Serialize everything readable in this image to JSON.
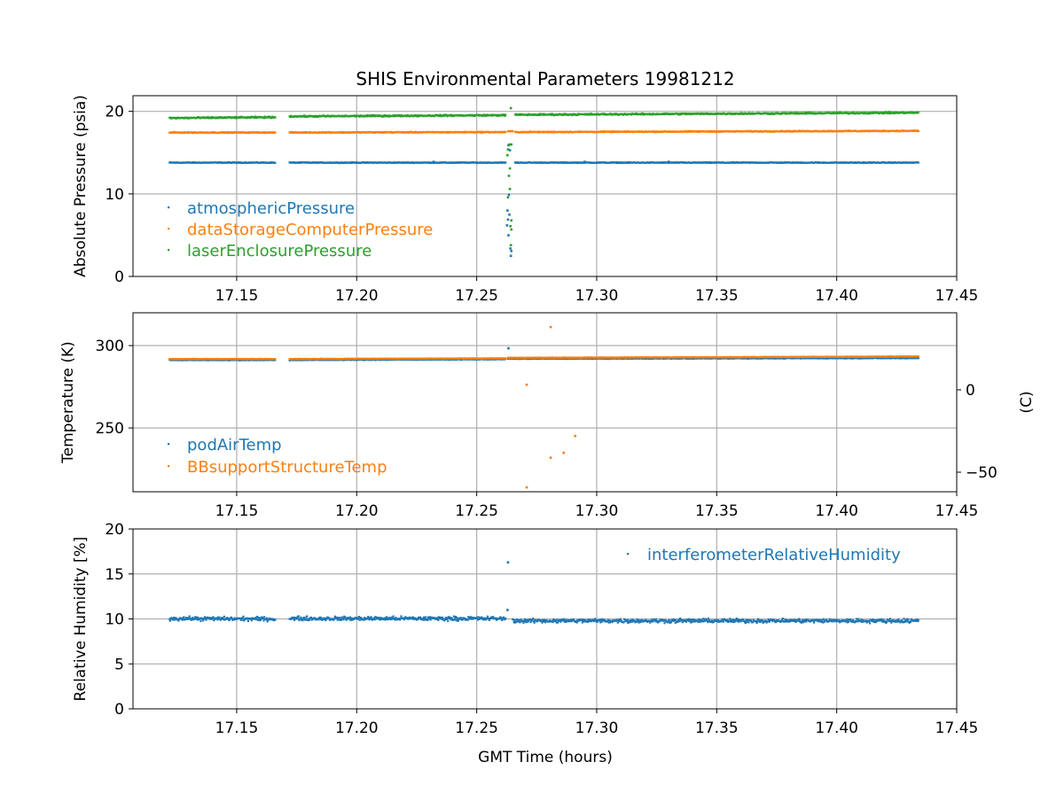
{
  "title": "SHIS Environmental Parameters 19981212",
  "xlabel": "GMT Time (hours)",
  "chart_data": [
    {
      "type": "scatter",
      "ylabel": "Absolute Pressure (psia)",
      "xlim": [
        17.1068,
        17.45
      ],
      "ylim": [
        0,
        21.9
      ],
      "xticks": [
        17.15,
        17.2,
        17.25,
        17.3,
        17.35,
        17.4,
        17.45
      ],
      "xtick_labels": [
        "17.15",
        "17.20",
        "17.25",
        "17.30",
        "17.35",
        "17.40",
        "17.45"
      ],
      "yticks": [
        0,
        10,
        20
      ],
      "ytick_labels": [
        "0",
        "10",
        "20"
      ],
      "grid": true,
      "legend": "center-left",
      "series": [
        {
          "name": "atmosphericPressure",
          "color": "#1f77b4",
          "segments": [
            [
              17.122,
              17.166,
              13.8,
              13.8,
              0.03
            ],
            [
              17.172,
              17.262,
              13.8,
              13.8,
              0.03
            ],
            [
              17.266,
              17.434,
              13.8,
              13.8,
              0.03
            ]
          ],
          "points": [
            [
              17.2632,
              15.9
            ],
            [
              17.2638,
              15.3
            ],
            [
              17.2634,
              9.9
            ],
            [
              17.2628,
              8.0
            ],
            [
              17.2636,
              7.5
            ],
            [
              17.263,
              6.9
            ],
            [
              17.2626,
              6.2
            ],
            [
              17.2632,
              5.0
            ],
            [
              17.264,
              3.4
            ],
            [
              17.2644,
              3.1
            ],
            [
              17.2642,
              2.5
            ],
            [
              17.232,
              13.9
            ],
            [
              17.295,
              13.9
            ],
            [
              17.33,
              13.9
            ]
          ]
        },
        {
          "name": "dataStorageComputerPressure",
          "color": "#ff7f0e",
          "segments": [
            [
              17.122,
              17.166,
              17.45,
              17.45,
              0.04
            ],
            [
              17.172,
              17.262,
              17.45,
              17.5,
              0.04
            ],
            [
              17.263,
              17.265,
              17.6,
              17.6,
              0.02
            ],
            [
              17.266,
              17.434,
              17.5,
              17.65,
              0.04
            ]
          ],
          "points": []
        },
        {
          "name": "laserEnclosurePressure",
          "color": "#2ca02c",
          "segments": [
            [
              17.122,
              17.166,
              19.2,
              19.3,
              0.06
            ],
            [
              17.172,
              17.262,
              19.4,
              19.55,
              0.06
            ],
            [
              17.266,
              17.434,
              19.6,
              19.85,
              0.06
            ]
          ],
          "points": [
            [
              17.2642,
              20.4
            ],
            [
              17.2636,
              16.0
            ],
            [
              17.2644,
              16.0
            ],
            [
              17.263,
              15.4
            ],
            [
              17.2638,
              13.1
            ],
            [
              17.2634,
              12.2
            ],
            [
              17.2638,
              10.6
            ],
            [
              17.263,
              9.6
            ],
            [
              17.2644,
              6.8
            ],
            [
              17.264,
              6.1
            ],
            [
              17.2644,
              5.7
            ],
            [
              17.2642,
              3.8
            ],
            [
              17.2628,
              14.7
            ]
          ]
        }
      ]
    },
    {
      "type": "scatter",
      "ylabel": "Temperature (K)",
      "ylabel_right": "(C)",
      "xlim": [
        17.1068,
        17.45
      ],
      "ylim": [
        211.3,
        319.9
      ],
      "xticks": [
        17.15,
        17.2,
        17.25,
        17.3,
        17.35,
        17.4,
        17.45
      ],
      "xtick_labels": [
        "17.15",
        "17.20",
        "17.25",
        "17.30",
        "17.35",
        "17.40",
        "17.45"
      ],
      "yticks": [
        250,
        300
      ],
      "ytick_labels": [
        "250",
        "300"
      ],
      "yticks_right_C": [
        0,
        -50
      ],
      "ytick_labels_right": [
        "0",
        "−50"
      ],
      "grid": true,
      "legend": "lower-left",
      "series": [
        {
          "name": "podAirTemp",
          "color": "#1f77b4",
          "segments": [
            [
              17.122,
              17.166,
              291.3,
              291.3,
              0.15
            ],
            [
              17.172,
              17.262,
              291.3,
              291.8,
              0.15
            ],
            [
              17.263,
              17.434,
              292.1,
              292.5,
              0.15
            ]
          ],
          "points": [
            [
              17.2632,
              298.4
            ]
          ]
        },
        {
          "name": "BBsupportStructureTemp",
          "color": "#ff7f0e",
          "segments": [
            [
              17.122,
              17.166,
              291.9,
              291.9,
              0.1
            ],
            [
              17.172,
              17.262,
              291.9,
              292.3,
              0.1
            ],
            [
              17.263,
              17.434,
              292.6,
              293.4,
              0.1
            ]
          ],
          "points": [
            [
              17.2808,
              311.3
            ],
            [
              17.2708,
              276.3
            ],
            [
              17.291,
              245.2
            ],
            [
              17.2862,
              235.0
            ],
            [
              17.2808,
              232.0
            ],
            [
              17.2708,
              214.0
            ]
          ]
        }
      ]
    },
    {
      "type": "scatter",
      "ylabel": "Relative Humidity [%]",
      "xlim": [
        17.1068,
        17.45
      ],
      "ylim": [
        0,
        20
      ],
      "xticks": [
        17.15,
        17.2,
        17.25,
        17.3,
        17.35,
        17.4,
        17.45
      ],
      "xtick_labels": [
        "17.15",
        "17.20",
        "17.25",
        "17.30",
        "17.35",
        "17.40",
        "17.45"
      ],
      "yticks": [
        0,
        5,
        10,
        15,
        20
      ],
      "ytick_labels": [
        "0",
        "5",
        "10",
        "15",
        "20"
      ],
      "grid": true,
      "legend": "upper-right",
      "series": [
        {
          "name": "interferometerRelativeHumidity",
          "color": "#1f77b4",
          "segments": [
            [
              17.122,
              17.166,
              10.05,
              10.0,
              0.15
            ],
            [
              17.172,
              17.262,
              10.05,
              10.05,
              0.15
            ],
            [
              17.265,
              17.434,
              9.8,
              9.8,
              0.15
            ]
          ],
          "points": [
            [
              17.263,
              16.3
            ],
            [
              17.2628,
              11.0
            ]
          ]
        }
      ]
    }
  ]
}
